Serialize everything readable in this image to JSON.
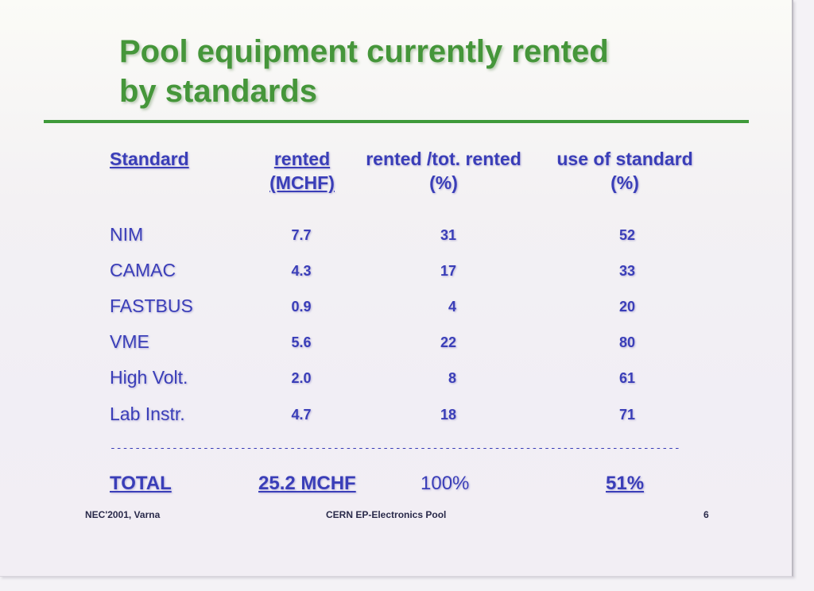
{
  "slide": {
    "title_line1": "Pool equipment currently rented",
    "title_line2": "by standards"
  },
  "table": {
    "headers": {
      "standard": "Standard",
      "rented_line1": "rented",
      "rented_line2": "(MCHF)",
      "pct_line1": "rented /tot. rented",
      "pct_line2": "(%)",
      "use_line1": "use of standard",
      "use_line2": "(%)"
    },
    "rows": [
      {
        "standard": "NIM",
        "rented": "7.7",
        "pct": "31",
        "use": "52"
      },
      {
        "standard": "CAMAC",
        "rented": "4.3",
        "pct": "17",
        "use": "33"
      },
      {
        "standard": "FASTBUS",
        "rented": "0.9",
        "pct": "4",
        "use": "20"
      },
      {
        "standard": "VME",
        "rented": "5.6",
        "pct": "22",
        "use": "80"
      },
      {
        "standard": "High Volt.",
        "rented": "2.0",
        "pct": "8",
        "use": "61"
      },
      {
        "standard": "Lab Instr.",
        "rented": "4.7",
        "pct": "18",
        "use": "71"
      }
    ],
    "separator": "--------------------------------------------------------------------------------------------------",
    "total": {
      "label": "TOTAL",
      "rented": "25.2 MCHF",
      "pct": "100%",
      "use": "51%"
    }
  },
  "footer": {
    "left": "NEC'2001, Varna",
    "center": "CERN EP-Electronics Pool",
    "page_number": "6"
  },
  "colors": {
    "title": "#45963a",
    "rule": "#3f9a3a",
    "text": "#3a3eb8"
  }
}
